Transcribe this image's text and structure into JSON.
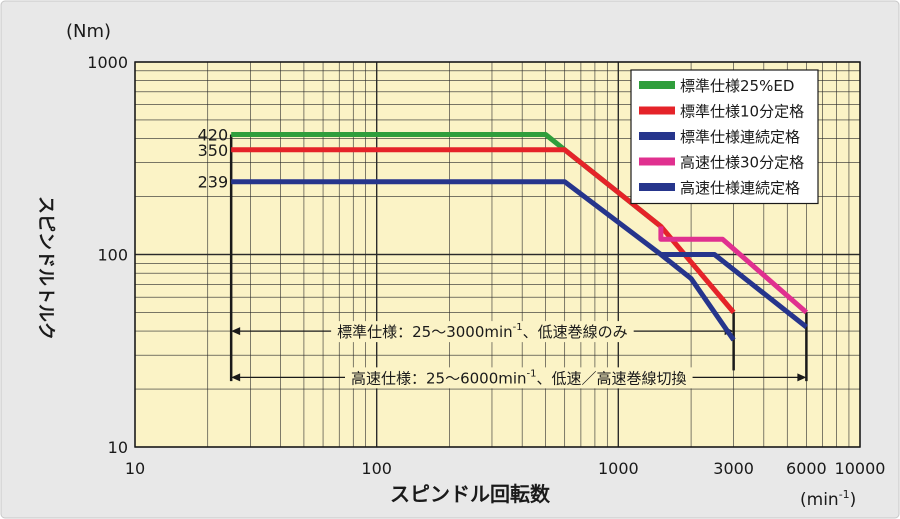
{
  "chart_data": {
    "type": "line",
    "x_scale": "log",
    "y_scale": "log",
    "xlim": [
      10,
      10000
    ],
    "ylim": [
      10,
      1000
    ],
    "grid": true,
    "legend_position": "top-right",
    "background_color": "#fbf3c6",
    "panel_color": "#e8e8e8",
    "xlabel": "スピンドル回転数",
    "x_unit": "min",
    "x_unit_exp": "-1",
    "ylabel": "スピンドルトルク",
    "y_unit": "(Nm)",
    "x_ticks": [
      {
        "value": 10,
        "label": "10"
      },
      {
        "value": 100,
        "label": "100"
      },
      {
        "value": 1000,
        "label": "1000"
      },
      {
        "value": 3000,
        "label": "3000"
      },
      {
        "value": 6000,
        "label": "6000"
      },
      {
        "value": 10000,
        "label": "10000"
      }
    ],
    "y_ticks": [
      {
        "value": 10,
        "label": "10"
      },
      {
        "value": 100,
        "label": "100"
      },
      {
        "value": 1000,
        "label": "1000"
      }
    ],
    "y_annotations": [
      {
        "value": 420,
        "label": "420"
      },
      {
        "value": 350,
        "label": "350"
      },
      {
        "value": 239,
        "label": "239"
      }
    ],
    "series": [
      {
        "name": "標準仕様25%ED",
        "color": "#2f9e3c",
        "x": [
          25,
          500,
          600,
          1500
        ],
        "y": [
          420,
          420,
          350,
          140
        ]
      },
      {
        "name": "標準仕様10分定格",
        "color": "#e52329",
        "x": [
          25,
          600,
          1500,
          3000
        ],
        "y": [
          350,
          350,
          140,
          50
        ]
      },
      {
        "name": "標準仕様連続定格",
        "color": "#26358c",
        "x": [
          25,
          600,
          1500,
          2000,
          3000
        ],
        "y": [
          239,
          239,
          100,
          75,
          36
        ]
      },
      {
        "name": "高速仕様30分定格",
        "color": "#e0308f",
        "x": [
          1500,
          1500,
          2700,
          6000
        ],
        "y": [
          140,
          120,
          120,
          50
        ]
      },
      {
        "name": "高速仕様連続定格",
        "color": "#26358c",
        "x": [
          1500,
          2500,
          6000
        ],
        "y": [
          100,
          100,
          42
        ]
      }
    ],
    "vertical_markers": [
      {
        "x": 25,
        "y_from": 420,
        "y_to": 22
      },
      {
        "x": 3000,
        "y_from": 50,
        "y_to": 25
      },
      {
        "x": 6000,
        "y_from": 50,
        "y_to": 22
      }
    ],
    "range_annotations": [
      {
        "x_from": 25,
        "x_to": 3000,
        "y": 40,
        "text": "標準仕様：25〜3000min",
        "superscript": "-1",
        "suffix": "、低速巻線のみ"
      },
      {
        "x_from": 25,
        "x_to": 6000,
        "y": 23,
        "text": "高速仕様：25〜6000min",
        "superscript": "-1",
        "suffix": "、低速／高速巻線切換"
      }
    ]
  }
}
